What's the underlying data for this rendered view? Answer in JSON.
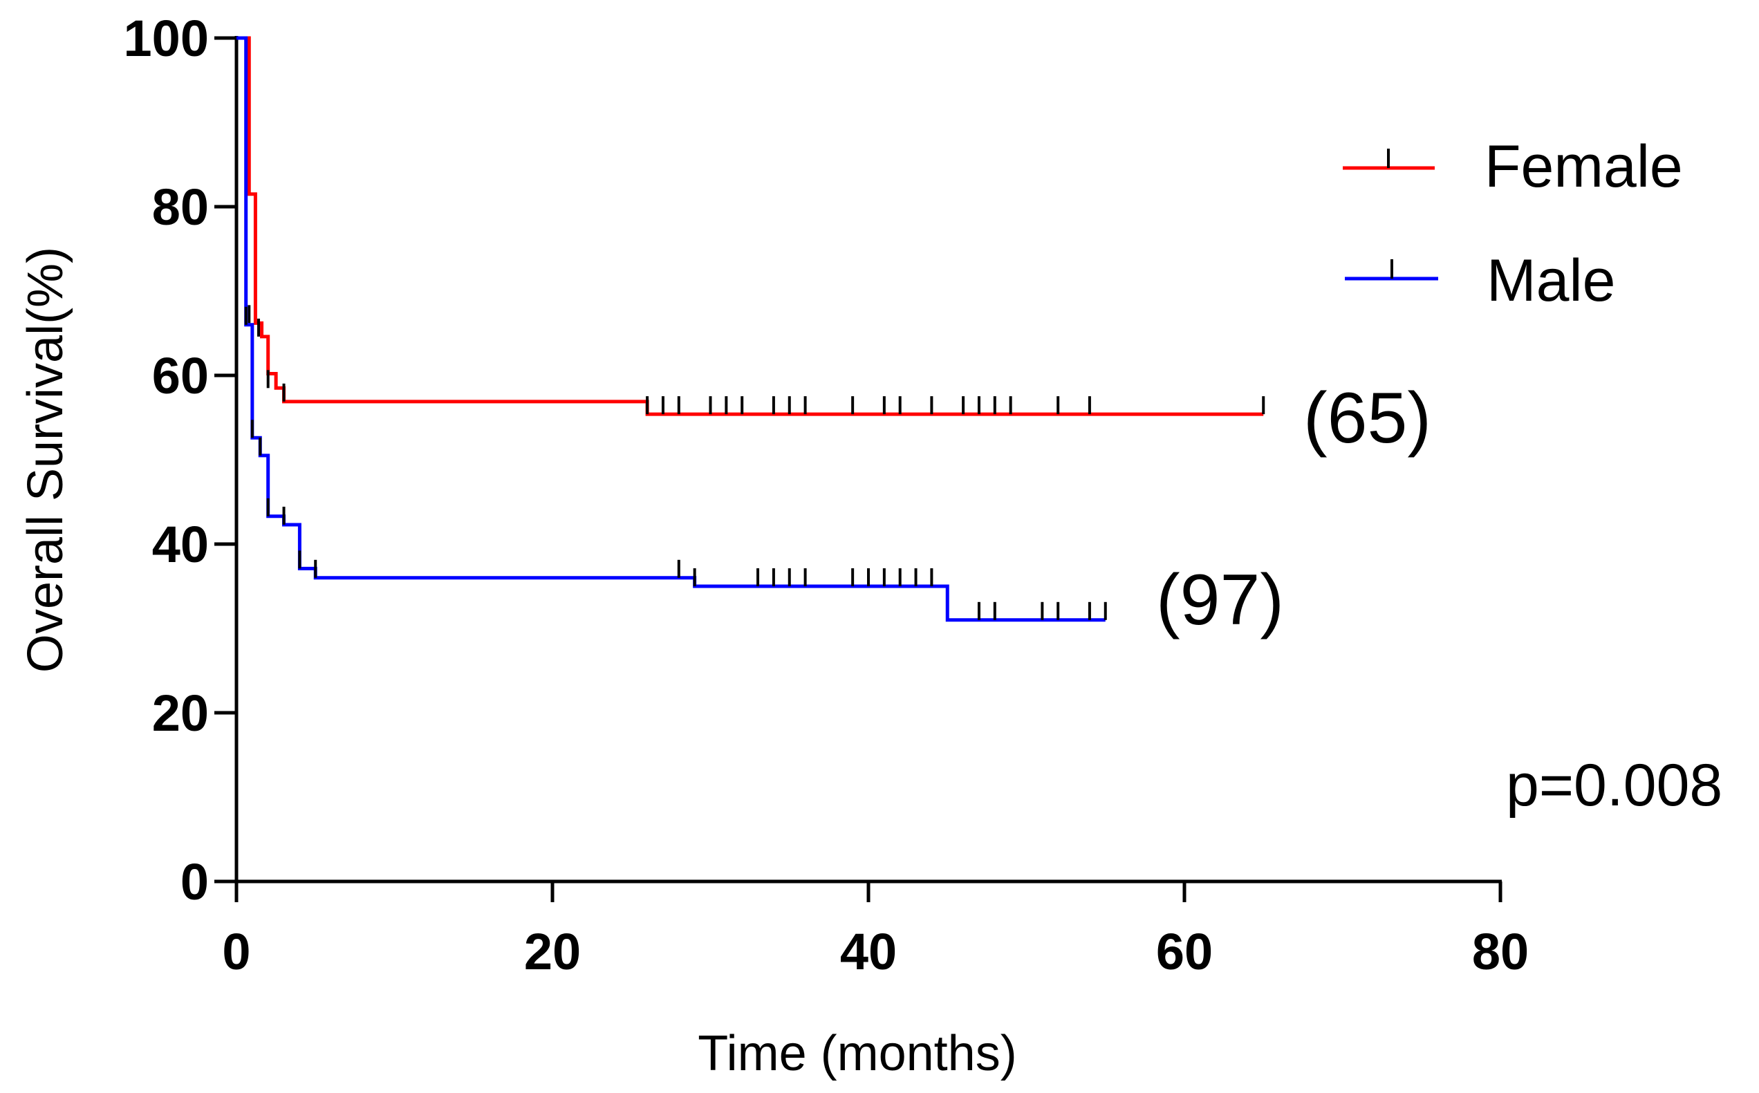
{
  "chart_data": {
    "type": "line",
    "subtype": "kaplan-meier step",
    "title": "",
    "xlabel": "Time (months)",
    "ylabel": "Overall Survival(%)",
    "xlim": [
      0,
      80
    ],
    "ylim": [
      0,
      100
    ],
    "xticks": [
      0,
      20,
      40,
      60,
      80
    ],
    "yticks": [
      0,
      20,
      40,
      60,
      80,
      100
    ],
    "xtick_labels": [
      "0",
      "20",
      "40",
      "60",
      "80"
    ],
    "ytick_labels": [
      "0",
      "20",
      "40",
      "60",
      "80",
      "100"
    ],
    "grid": false,
    "legend_position": "top-right",
    "series": [
      {
        "name": "Female",
        "color": "#ff0000",
        "n_label": "(65)",
        "steps": [
          [
            0,
            100
          ],
          [
            0.8,
            81.5
          ],
          [
            1.2,
            66.2
          ],
          [
            1.6,
            64.6
          ],
          [
            2.0,
            60.2
          ],
          [
            2.5,
            58.5
          ],
          [
            3.0,
            56.9
          ],
          [
            26.0,
            55.4
          ],
          [
            65.0,
            55.4
          ]
        ],
        "censored": [
          [
            0.8,
            66.2
          ],
          [
            1.4,
            64.6
          ],
          [
            2.0,
            58.5
          ],
          [
            3.0,
            56.9
          ],
          [
            26,
            55.4
          ],
          [
            27,
            55.4
          ],
          [
            28,
            55.4
          ],
          [
            30,
            55.4
          ],
          [
            31,
            55.4
          ],
          [
            32,
            55.4
          ],
          [
            34,
            55.4
          ],
          [
            35,
            55.4
          ],
          [
            36,
            55.4
          ],
          [
            39,
            55.4
          ],
          [
            41,
            55.4
          ],
          [
            42,
            55.4
          ],
          [
            44,
            55.4
          ],
          [
            46,
            55.4
          ],
          [
            47,
            55.4
          ],
          [
            48,
            55.4
          ],
          [
            49,
            55.4
          ],
          [
            52,
            55.4
          ],
          [
            54,
            55.4
          ],
          [
            65,
            55.4
          ]
        ]
      },
      {
        "name": "Male",
        "color": "#0000ff",
        "n_label": "(97)",
        "steps": [
          [
            0,
            100
          ],
          [
            0.4,
            100
          ],
          [
            0.6,
            66.0
          ],
          [
            1.0,
            52.6
          ],
          [
            1.5,
            50.5
          ],
          [
            2.0,
            43.3
          ],
          [
            3.0,
            42.3
          ],
          [
            4.0,
            37.1
          ],
          [
            5.0,
            36.0
          ],
          [
            28.0,
            36.0
          ],
          [
            29.0,
            35.0
          ],
          [
            45.0,
            31.0
          ],
          [
            55.0,
            31.0
          ]
        ],
        "censored": [
          [
            0.6,
            66.0
          ],
          [
            1.0,
            52.6
          ],
          [
            1.5,
            50.5
          ],
          [
            2.0,
            43.3
          ],
          [
            3.0,
            42.3
          ],
          [
            4.0,
            37.1
          ],
          [
            5.0,
            36.0
          ],
          [
            28,
            36.0
          ],
          [
            29,
            35.0
          ],
          [
            33,
            35.0
          ],
          [
            34,
            35.0
          ],
          [
            35,
            35.0
          ],
          [
            36,
            35.0
          ],
          [
            39,
            35.0
          ],
          [
            40,
            35.0
          ],
          [
            41,
            35.0
          ],
          [
            42,
            35.0
          ],
          [
            43,
            35.0
          ],
          [
            44,
            35.0
          ],
          [
            47,
            31.0
          ],
          [
            48,
            31.0
          ],
          [
            51,
            31.0
          ],
          [
            52,
            31.0
          ],
          [
            54,
            31.0
          ],
          [
            55,
            31.0
          ]
        ]
      }
    ],
    "annotations": {
      "p_value": "p=0.008"
    }
  }
}
